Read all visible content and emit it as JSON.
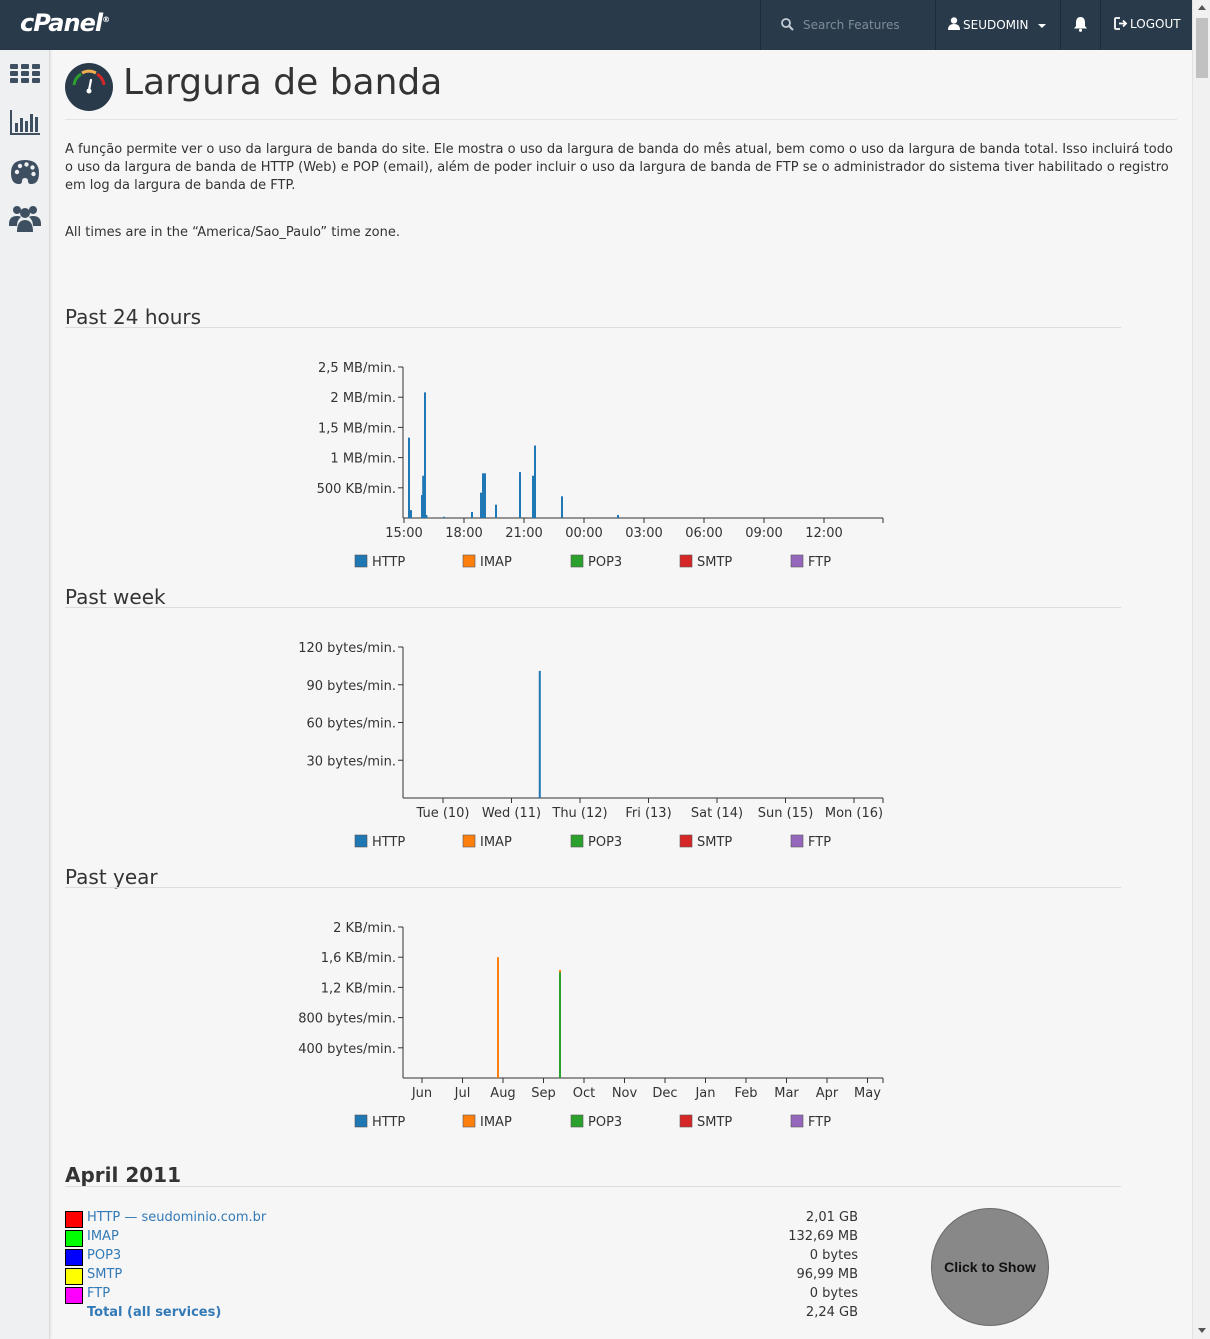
{
  "topbar": {
    "logo": "cPanel",
    "search_placeholder": "Search Features",
    "username": "SEUDOMIN",
    "logout": "LOGOUT",
    "bg_color": "#293a4a"
  },
  "sidebar": {
    "items": [
      {
        "icon": "grid-icon"
      },
      {
        "icon": "bar-chart-icon"
      },
      {
        "icon": "palette-icon"
      },
      {
        "icon": "users-icon"
      }
    ]
  },
  "page": {
    "title": "Largura de banda",
    "description": "A função permite ver o uso da largura de banda do site. Ele mostra o uso da largura de banda do mês atual, bem como o uso da largura de banda total. Isso incluirá todo o uso da largura de banda de HTTP (Web) e POP (email), além de poder incluir o uso da largura de banda de FTP se o administrador do sistema tiver habilitado o registro em log da largura de banda de FTP.",
    "timezone_note": "All times are in the “America/Sao_Paulo” time zone."
  },
  "legend": {
    "items": [
      {
        "label": "HTTP",
        "color": "#1f77b4"
      },
      {
        "label": "IMAP",
        "color": "#ff7f0e"
      },
      {
        "label": "POP3",
        "color": "#2ca02c"
      },
      {
        "label": "SMTP",
        "color": "#d62728"
      },
      {
        "label": "FTP",
        "color": "#9467bd"
      }
    ]
  },
  "chart_data": [
    {
      "type": "bar",
      "title": "Past 24 hours",
      "x_ticks": [
        "15:00",
        "18:00",
        "21:00",
        "00:00",
        "03:00",
        "06:00",
        "09:00",
        "12:00"
      ],
      "y_ticks": [
        "500 KB/min.",
        "1 MB/min.",
        "1,5 MB/min.",
        "2 MB/min.",
        "2,5 MB/min."
      ],
      "ylim_mb": [
        0,
        2.5
      ],
      "xlim_hours": [
        0,
        24
      ],
      "series": [
        {
          "name": "HTTP",
          "points": [
            [
              0.25,
              1.33
            ],
            [
              0.35,
              0.13
            ],
            [
              0.9,
              0.38
            ],
            [
              0.96,
              0.7
            ],
            [
              1.05,
              2.08
            ],
            [
              1.12,
              0.05
            ],
            [
              2.0,
              0.02
            ],
            [
              3.4,
              0.1
            ],
            [
              3.85,
              0.42
            ],
            [
              3.95,
              0.74
            ],
            [
              4.05,
              0.74
            ],
            [
              4.6,
              0.22
            ],
            [
              5.8,
              0.76
            ],
            [
              6.45,
              0.7
            ],
            [
              6.55,
              1.2
            ],
            [
              7.9,
              0.36
            ],
            [
              10.7,
              0.05
            ]
          ]
        },
        {
          "name": "IMAP",
          "points": []
        },
        {
          "name": "POP3",
          "points": []
        },
        {
          "name": "SMTP",
          "points": []
        },
        {
          "name": "FTP",
          "points": []
        }
      ]
    },
    {
      "type": "bar",
      "title": "Past week",
      "x_ticks": [
        "Tue (10)",
        "Wed (11)",
        "Thu (12)",
        "Fri (13)",
        "Sat (14)",
        "Sun (15)",
        "Mon (16)"
      ],
      "y_ticks": [
        "30 bytes/min.",
        "60 bytes/min.",
        "90 bytes/min.",
        "120 bytes/min."
      ],
      "ylim_bytes": [
        0,
        120
      ],
      "series": [
        {
          "name": "HTTP",
          "points": [
            [
              1.98,
              101
            ]
          ]
        },
        {
          "name": "IMAP",
          "points": []
        },
        {
          "name": "POP3",
          "points": []
        },
        {
          "name": "SMTP",
          "points": []
        },
        {
          "name": "FTP",
          "points": []
        }
      ]
    },
    {
      "type": "bar",
      "title": "Past year",
      "x_ticks": [
        "Jun",
        "Jul",
        "Aug",
        "Sep",
        "Oct",
        "Nov",
        "Dec",
        "Jan",
        "Feb",
        "Mar",
        "Apr",
        "May"
      ],
      "y_ticks": [
        "400 bytes/min.",
        "800 bytes/min.",
        "1,2 KB/min.",
        "1,6 KB/min.",
        "2 KB/min."
      ],
      "ylim_kb": [
        0,
        2
      ],
      "series": [
        {
          "name": "HTTP",
          "points": []
        },
        {
          "name": "IMAP",
          "points": [
            [
              2.35,
              1.6
            ],
            [
              3.9,
              1.43
            ]
          ]
        },
        {
          "name": "POP3",
          "points": [
            [
              3.9,
              1.4
            ]
          ]
        },
        {
          "name": "SMTP",
          "points": []
        },
        {
          "name": "FTP",
          "points": []
        }
      ]
    }
  ],
  "month": {
    "title": "April 2011",
    "rows": [
      {
        "label": "HTTP — seudominio.com.br",
        "value": "2,01 GB",
        "color": "#ff0000"
      },
      {
        "label": "IMAP",
        "value": "132,69 MB",
        "color": "#00ff00"
      },
      {
        "label": "POP3",
        "value": "0 bytes",
        "color": "#0000ff"
      },
      {
        "label": "SMTP",
        "value": "96,99 MB",
        "color": "#ffff00"
      },
      {
        "label": "FTP",
        "value": "0 bytes",
        "color": "#ff00ff"
      }
    ],
    "total_label": "Total (all services)",
    "total_value": "2,24 GB",
    "show_button": "Click to Show"
  }
}
